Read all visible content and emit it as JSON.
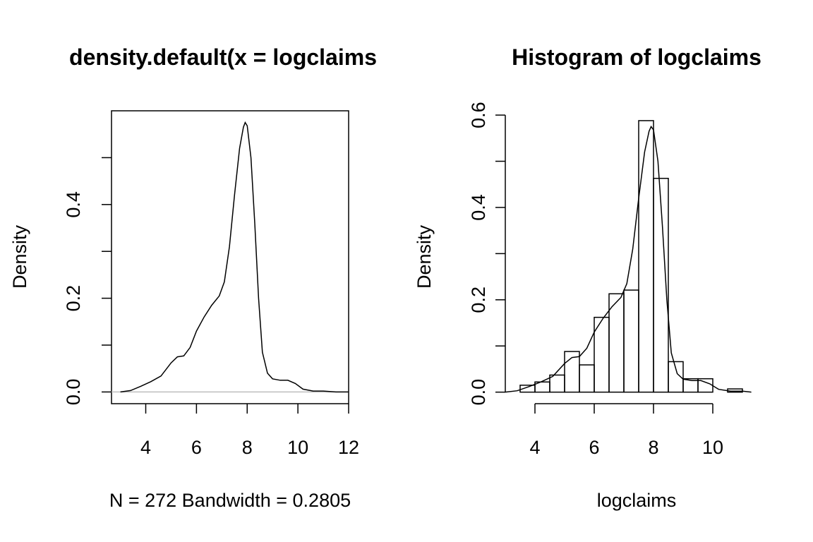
{
  "chart_data": [
    {
      "type": "line",
      "title": "density.default(x = logclaims",
      "xlabel": "N = 272   Bandwidth = 0.2805",
      "ylabel": "Density",
      "xlim": [
        2.65,
        12.0
      ],
      "ylim": [
        -0.025,
        0.6
      ],
      "x_ticks": [
        4,
        6,
        8,
        10,
        12
      ],
      "y_ticks": [
        0.0,
        0.1,
        0.2,
        0.3,
        0.4,
        0.5
      ],
      "y_tick_labels": [
        "0.0",
        "",
        "0.2",
        "",
        "0.4",
        ""
      ],
      "baseline": 0,
      "series": [
        {
          "x": [
            3.0,
            3.4,
            3.8,
            4.2,
            4.6,
            5.0,
            5.25,
            5.5,
            5.75,
            6.0,
            6.3,
            6.6,
            6.9,
            7.1,
            7.3,
            7.5,
            7.7,
            7.85,
            7.92,
            8.0,
            8.15,
            8.3,
            8.45,
            8.6,
            8.8,
            9.0,
            9.3,
            9.6,
            9.9,
            10.2,
            10.6,
            11.0,
            11.5,
            12.0
          ],
          "y": [
            0.0,
            0.003,
            0.012,
            0.022,
            0.034,
            0.062,
            0.075,
            0.077,
            0.095,
            0.13,
            0.16,
            0.185,
            0.205,
            0.235,
            0.31,
            0.42,
            0.52,
            0.565,
            0.575,
            0.568,
            0.5,
            0.36,
            0.2,
            0.085,
            0.04,
            0.028,
            0.025,
            0.025,
            0.018,
            0.006,
            0.002,
            0.002,
            0.0,
            0.0
          ]
        }
      ]
    },
    {
      "type": "bar",
      "title": "Histogram of logclaims",
      "xlabel": "logclaims",
      "ylabel": "Density",
      "xlim": [
        3.0,
        11.5
      ],
      "ylim": [
        -0.025,
        0.62
      ],
      "x_ticks": [
        4,
        6,
        8,
        10
      ],
      "y_ticks": [
        0.0,
        0.1,
        0.2,
        0.3,
        0.4,
        0.5,
        0.6
      ],
      "y_tick_labels": [
        "0.0",
        "",
        "0.2",
        "",
        "0.4",
        "",
        "0.6"
      ],
      "bin_edges": [
        3.5,
        4.0,
        4.5,
        5.0,
        5.5,
        6.0,
        6.5,
        7.0,
        7.5,
        8.0,
        8.5,
        9.0,
        9.5,
        10.0,
        10.5,
        11.0
      ],
      "values": [
        0.015,
        0.022,
        0.037,
        0.088,
        0.059,
        0.162,
        0.213,
        0.221,
        0.588,
        0.463,
        0.066,
        0.029,
        0.029,
        0.0,
        0.007
      ],
      "overlay_density": {
        "x": [
          3.0,
          3.4,
          3.8,
          4.2,
          4.6,
          5.0,
          5.25,
          5.5,
          5.75,
          6.0,
          6.3,
          6.6,
          6.9,
          7.1,
          7.3,
          7.5,
          7.7,
          7.85,
          7.92,
          8.0,
          8.15,
          8.3,
          8.45,
          8.6,
          8.8,
          9.0,
          9.3,
          9.6,
          9.9,
          10.2,
          10.6,
          11.0,
          11.3
        ],
        "y": [
          0.0,
          0.003,
          0.012,
          0.022,
          0.034,
          0.062,
          0.075,
          0.077,
          0.095,
          0.13,
          0.16,
          0.185,
          0.205,
          0.235,
          0.31,
          0.42,
          0.52,
          0.565,
          0.575,
          0.568,
          0.5,
          0.36,
          0.2,
          0.085,
          0.04,
          0.028,
          0.025,
          0.025,
          0.018,
          0.006,
          0.002,
          0.002,
          0.0
        ]
      }
    }
  ]
}
